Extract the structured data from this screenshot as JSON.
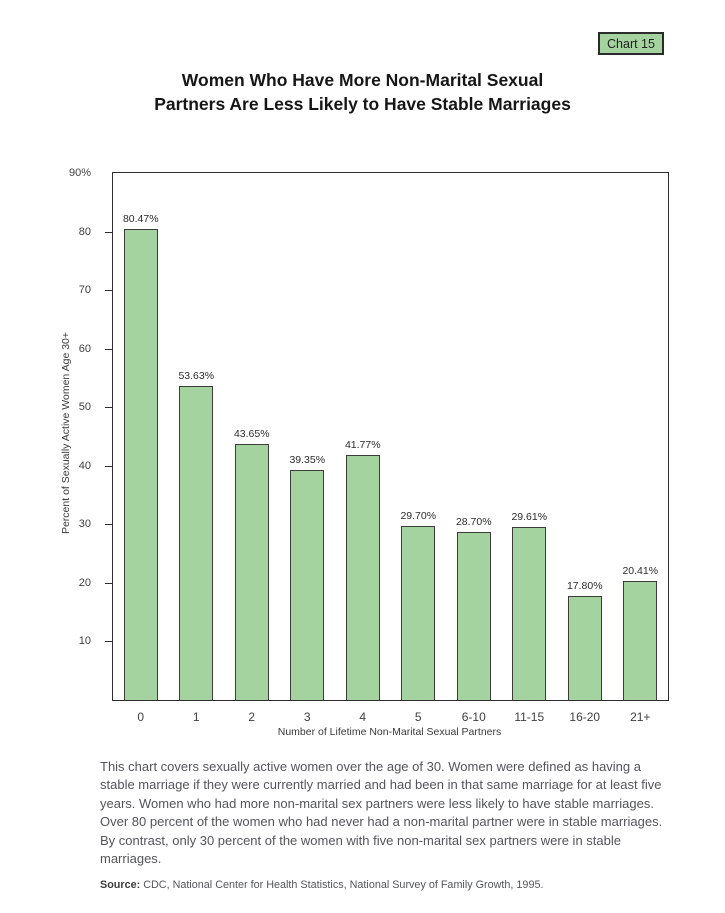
{
  "badge": {
    "label": "Chart 15"
  },
  "title": {
    "line1": "Women Who Have More Non-Marital Sexual",
    "line2": "Partners Are Less Likely to Have Stable Marriages"
  },
  "chart_data": {
    "type": "bar",
    "title": "Women Who Have More Non-Marital Sexual Partners Are Less Likely to Have Stable Marriages",
    "categories": [
      "0",
      "1",
      "2",
      "3",
      "4",
      "5",
      "6-10",
      "11-15",
      "16-20",
      "21+"
    ],
    "values": [
      80.47,
      53.63,
      43.65,
      39.35,
      41.77,
      29.7,
      28.7,
      29.61,
      17.8,
      20.41
    ],
    "value_labels": [
      "80.47%",
      "53.63%",
      "43.65%",
      "39.35%",
      "41.77%",
      "29.70%",
      "28.70%",
      "29.61%",
      "17.80%",
      "20.41%"
    ],
    "xlabel": "Number of Lifetime Non-Marital Sexual Partners",
    "ylabel": "Percent of Sexually Active Women Age 30+",
    "ylim": [
      0,
      90
    ],
    "yticks": [
      10,
      20,
      30,
      40,
      50,
      60,
      70,
      80,
      90
    ],
    "ytick_labels": [
      "10",
      "20",
      "30",
      "40",
      "50",
      "60",
      "70",
      "80",
      "90%"
    ],
    "grid": false,
    "legend": false,
    "bar_color": "#a5d3a0",
    "bar_border_color": "#3c3c3c"
  },
  "description": "This chart covers sexually active women over the age of 30.  Women were defined as having a stable marriage if they were currently married and had been in that same marriage for at least five years.  Women who had more non-marital sex partners were less likely to have stable marriages.  Over 80 percent of the women who had never had a non-marital partner were in stable marriages.  By contrast, only 30 percent of the women with five non-marital sex partners were in stable marriages.",
  "source": {
    "label": "Source:",
    "text": "CDC, National Center for Health Statistics, National Survey of Family Growth, 1995."
  },
  "colors": {
    "accent_green": "#a5d3a0",
    "border_dark": "#2e2e2e",
    "text_gray": "#54555a"
  }
}
